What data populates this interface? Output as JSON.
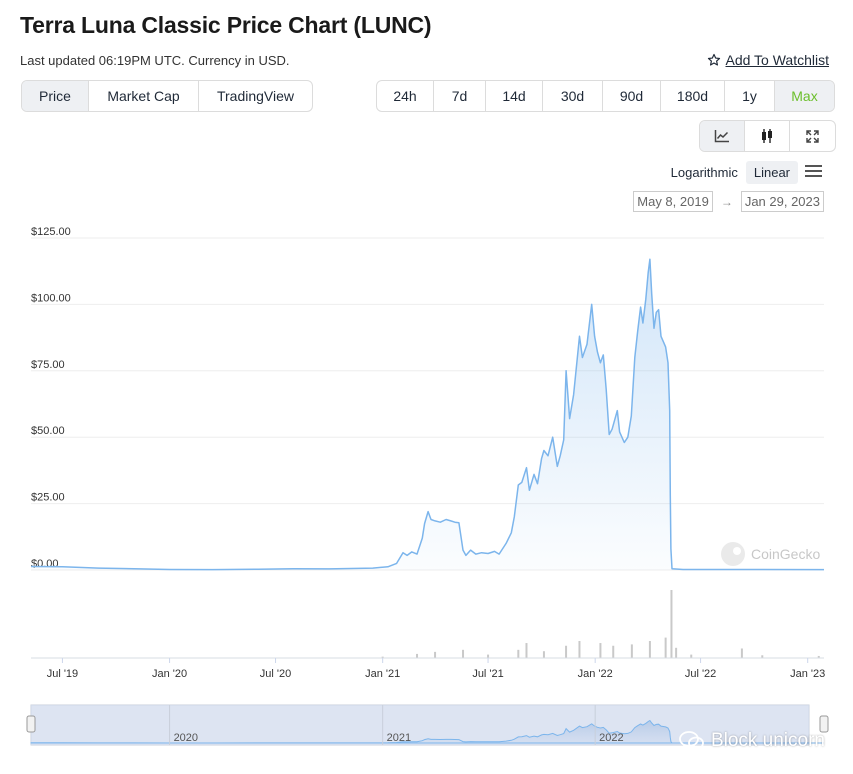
{
  "header": {
    "title": "Terra Luna Classic Price Chart (LUNC)",
    "updated": "Last updated 06:19PM UTC. Currency in USD.",
    "watchlist_label": "Add To Watchlist"
  },
  "metric_tabs": [
    "Price",
    "Market Cap",
    "TradingView"
  ],
  "active_metric": "Price",
  "range_tabs": [
    "24h",
    "7d",
    "14d",
    "30d",
    "90d",
    "180d",
    "1y",
    "Max"
  ],
  "active_range": "Max",
  "accent_color": "#6bbf2b",
  "line_color": "#7cb5ec",
  "view_icons": [
    "line-chart-icon",
    "candlestick-icon",
    "fullscreen-icon"
  ],
  "scale_options": [
    "Logarithmic",
    "Linear"
  ],
  "active_scale": "Linear",
  "date_range": {
    "from": "May 8, 2019",
    "to": "Jan 29, 2023",
    "arrow": "→"
  },
  "branding": {
    "chart_watermark": "CoinGecko",
    "image_watermark": "Block unicorn"
  },
  "chart_data": {
    "type": "line",
    "title": "",
    "xlabel": "",
    "ylabel": "",
    "ylim": [
      0,
      125
    ],
    "y_ticks": [
      0,
      25,
      50,
      75,
      100,
      125
    ],
    "y_tick_labels": [
      "$0.00",
      "$25.00",
      "$50.00",
      "$75.00",
      "$100.00",
      "$125.00"
    ],
    "x_ticks": [
      "Jul '19",
      "Jan '20",
      "Jul '20",
      "Jan '21",
      "Jul '21",
      "Jan '22",
      "Jul '22",
      "Jan '23"
    ],
    "x_tick_dates": [
      "2019-07-01",
      "2020-01-01",
      "2020-07-01",
      "2021-01-01",
      "2021-07-01",
      "2022-01-01",
      "2022-07-01",
      "2023-01-01"
    ],
    "xlim": [
      "2019-05-08",
      "2023-01-29"
    ],
    "grid": true,
    "series": [
      {
        "values": [
          [
            "2019-05-08",
            1.3
          ],
          [
            "2019-07-01",
            1.2
          ],
          [
            "2019-09-01",
            0.7
          ],
          [
            "2019-11-01",
            0.45
          ],
          [
            "2020-01-01",
            0.2
          ],
          [
            "2020-03-15",
            0.15
          ],
          [
            "2020-06-01",
            0.3
          ],
          [
            "2020-08-01",
            0.5
          ],
          [
            "2020-10-01",
            0.4
          ],
          [
            "2020-12-15",
            0.7
          ],
          [
            "2021-01-10",
            1.2
          ],
          [
            "2021-01-25",
            2.5
          ],
          [
            "2021-02-05",
            6.5
          ],
          [
            "2021-02-12",
            5.5
          ],
          [
            "2021-02-20",
            6.8
          ],
          [
            "2021-03-01",
            6.0
          ],
          [
            "2021-03-10",
            12.0
          ],
          [
            "2021-03-14",
            17.5
          ],
          [
            "2021-03-20",
            22.0
          ],
          [
            "2021-03-25",
            19.0
          ],
          [
            "2021-04-01",
            18.5
          ],
          [
            "2021-04-10",
            18.0
          ],
          [
            "2021-04-20",
            19.0
          ],
          [
            "2021-04-28",
            18.5
          ],
          [
            "2021-05-05",
            18.0
          ],
          [
            "2021-05-12",
            17.8
          ],
          [
            "2021-05-19",
            7.5
          ],
          [
            "2021-05-24",
            5.5
          ],
          [
            "2021-06-01",
            7.5
          ],
          [
            "2021-06-10",
            6.0
          ],
          [
            "2021-06-20",
            6.5
          ],
          [
            "2021-07-01",
            6.2
          ],
          [
            "2021-07-12",
            7.0
          ],
          [
            "2021-07-20",
            6.0
          ],
          [
            "2021-08-01",
            10.0
          ],
          [
            "2021-08-10",
            14.0
          ],
          [
            "2021-08-15",
            20.0
          ],
          [
            "2021-08-22",
            32.0
          ],
          [
            "2021-08-28",
            33.0
          ],
          [
            "2021-09-05",
            38.5
          ],
          [
            "2021-09-10",
            30.0
          ],
          [
            "2021-09-18",
            36.0
          ],
          [
            "2021-09-24",
            32.5
          ],
          [
            "2021-10-01",
            42.0
          ],
          [
            "2021-10-05",
            45.0
          ],
          [
            "2021-10-12",
            43.0
          ],
          [
            "2021-10-20",
            50.0
          ],
          [
            "2021-10-28",
            39.0
          ],
          [
            "2021-11-02",
            43.0
          ],
          [
            "2021-11-08",
            49.0
          ],
          [
            "2021-11-12",
            75.0
          ],
          [
            "2021-11-18",
            57.0
          ],
          [
            "2021-11-25",
            66.0
          ],
          [
            "2021-12-05",
            88.0
          ],
          [
            "2021-12-10",
            80.0
          ],
          [
            "2021-12-18",
            85.0
          ],
          [
            "2021-12-26",
            100.0
          ],
          [
            "2021-12-31",
            88.0
          ],
          [
            "2022-01-05",
            82.0
          ],
          [
            "2022-01-10",
            78.0
          ],
          [
            "2022-01-15",
            81.0
          ],
          [
            "2022-01-20",
            68.0
          ],
          [
            "2022-01-25",
            51.0
          ],
          [
            "2022-01-30",
            53.0
          ],
          [
            "2022-02-08",
            60.0
          ],
          [
            "2022-02-12",
            52.0
          ],
          [
            "2022-02-20",
            48.0
          ],
          [
            "2022-02-26",
            50.0
          ],
          [
            "2022-03-04",
            58.0
          ],
          [
            "2022-03-10",
            80.0
          ],
          [
            "2022-03-15",
            90.0
          ],
          [
            "2022-03-20",
            99.0
          ],
          [
            "2022-03-24",
            93.0
          ],
          [
            "2022-03-29",
            102.0
          ],
          [
            "2022-04-02",
            112.0
          ],
          [
            "2022-04-05",
            117.0
          ],
          [
            "2022-04-08",
            104.0
          ],
          [
            "2022-04-12",
            91.0
          ],
          [
            "2022-04-16",
            97.0
          ],
          [
            "2022-04-20",
            98.0
          ],
          [
            "2022-04-24",
            88.0
          ],
          [
            "2022-04-28",
            86.0
          ],
          [
            "2022-05-02",
            84.0
          ],
          [
            "2022-05-06",
            78.0
          ],
          [
            "2022-05-09",
            60.0
          ],
          [
            "2022-05-10",
            28.0
          ],
          [
            "2022-05-11",
            8.0
          ],
          [
            "2022-05-13",
            0.5
          ],
          [
            "2022-06-01",
            0.2
          ],
          [
            "2022-09-01",
            0.2
          ],
          [
            "2023-01-29",
            0.15
          ]
        ]
      }
    ],
    "volume_values": [
      [
        "2021-01-01",
        0.02
      ],
      [
        "2021-03-01",
        0.06
      ],
      [
        "2021-04-01",
        0.09
      ],
      [
        "2021-05-19",
        0.12
      ],
      [
        "2021-07-01",
        0.05
      ],
      [
        "2021-08-22",
        0.12
      ],
      [
        "2021-09-05",
        0.22
      ],
      [
        "2021-10-05",
        0.1
      ],
      [
        "2021-11-12",
        0.18
      ],
      [
        "2021-12-05",
        0.25
      ],
      [
        "2022-01-10",
        0.22
      ],
      [
        "2022-02-01",
        0.18
      ],
      [
        "2022-03-05",
        0.2
      ],
      [
        "2022-04-05",
        0.25
      ],
      [
        "2022-05-02",
        0.3
      ],
      [
        "2022-05-12",
        1.0
      ],
      [
        "2022-05-20",
        0.15
      ],
      [
        "2022-06-15",
        0.05
      ],
      [
        "2022-09-10",
        0.14
      ],
      [
        "2022-10-15",
        0.04
      ],
      [
        "2023-01-20",
        0.03
      ]
    ],
    "navigator_labels": [
      "2020",
      "2021",
      "2022"
    ],
    "navigator_dates": [
      "2020-01-01",
      "2021-01-01",
      "2022-01-01"
    ]
  }
}
